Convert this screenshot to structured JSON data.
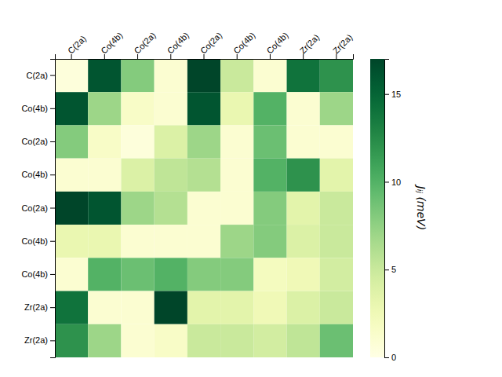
{
  "chart_data": {
    "type": "heatmap",
    "categories": [
      "C(2a)",
      "Co(4b)",
      "Co(2a)",
      "Co(4b)",
      "Co(2a)",
      "Co(4b)",
      "Co(4b)",
      "Zr(2a)",
      "Zr(2a)"
    ],
    "values": [
      [
        0.5,
        16.0,
        8.0,
        1.0,
        17.0,
        5.0,
        1.0,
        14.0,
        12.0
      ],
      [
        16.0,
        7.0,
        1.5,
        1.0,
        16.0,
        3.0,
        10.0,
        1.0,
        7.0
      ],
      [
        8.0,
        1.5,
        0.5,
        4.0,
        7.0,
        1.0,
        9.0,
        1.0,
        1.0
      ],
      [
        1.0,
        1.0,
        4.0,
        5.5,
        6.0,
        1.0,
        10.0,
        12.0,
        3.5
      ],
      [
        17.0,
        16.0,
        7.0,
        6.0,
        1.0,
        1.0,
        8.0,
        3.5,
        5.0
      ],
      [
        3.0,
        3.0,
        1.0,
        1.0,
        1.0,
        7.0,
        8.0,
        4.0,
        5.0
      ],
      [
        1.0,
        10.0,
        9.0,
        10.0,
        8.0,
        8.0,
        2.0,
        2.5,
        4.5
      ],
      [
        14.0,
        1.0,
        1.0,
        17.0,
        3.5,
        3.5,
        2.5,
        4.0,
        5.0
      ],
      [
        12.0,
        7.0,
        1.0,
        1.5,
        5.0,
        5.0,
        4.5,
        5.5,
        9.0
      ]
    ],
    "color": "YlGn",
    "colorbar_label": "Jᵢⱼ (meV)",
    "colorbar_range": [
      0,
      17
    ],
    "colorbar_ticks": [
      0,
      5,
      10,
      15
    ]
  }
}
